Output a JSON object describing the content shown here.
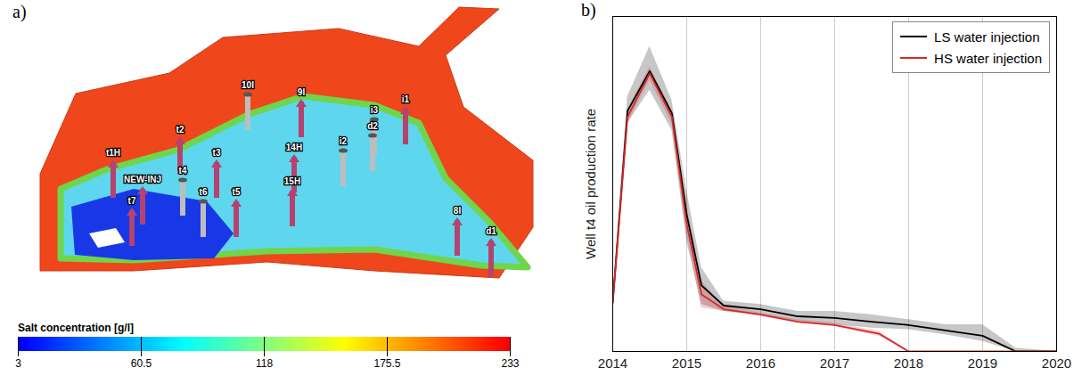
{
  "panel_a": {
    "label": "a)",
    "wells": [
      "t1H",
      "NEW-INJ",
      "t7",
      "t2",
      "t4",
      "t6",
      "t3",
      "t5",
      "10I",
      "9I",
      "14H",
      "15H",
      "i2",
      "i3",
      "d2",
      "i1",
      "8I",
      "d1"
    ],
    "colorbar": {
      "title": "Salt concentration [g/l]",
      "range": [
        3,
        233
      ],
      "ticks": [
        3,
        60.5,
        118,
        175.5,
        233
      ]
    }
  },
  "chart_data": {
    "type": "line",
    "panel_label": "b)",
    "y_label": "Well t4 oil production rate",
    "xlim": [
      2014,
      2020
    ],
    "xticks": [
      2014,
      2015,
      2016,
      2017,
      2018,
      2019,
      2020
    ],
    "ylim": [
      0,
      100
    ],
    "tick_labels": "x",
    "grid": true,
    "legend": "top-right",
    "series": [
      {
        "name": "LS water injection",
        "color": "#000000",
        "x": [
          2014,
          2014.2,
          2014.5,
          2014.8,
          2015,
          2015.2,
          2015.5,
          2016,
          2016.5,
          2017,
          2017.5,
          2018,
          2018.5,
          2019,
          2019.45,
          2020
        ],
        "values": [
          14.5,
          71.8,
          83.7,
          71.1,
          40.8,
          19.7,
          13.7,
          12.6,
          10.5,
          10,
          8.9,
          7.9,
          6.3,
          4.7,
          0,
          0
        ],
        "lower": [
          13,
          68,
          78,
          66,
          33,
          14,
          12,
          11,
          9,
          8,
          7,
          6.5,
          5,
          3,
          0,
          0
        ],
        "upper": [
          16,
          76,
          91,
          75,
          48,
          25,
          15,
          14,
          12,
          12,
          11,
          9.5,
          8,
          8,
          1,
          0
        ]
      },
      {
        "name": "HS water injection",
        "color": "#d62728",
        "x": [
          2014,
          2014.2,
          2014.5,
          2014.8,
          2015,
          2015.2,
          2015.5,
          2016,
          2016.5,
          2017,
          2017.6,
          2018,
          2020
        ],
        "values": [
          14.5,
          70,
          83,
          70,
          38,
          17,
          12.6,
          11,
          8.9,
          7.9,
          5.3,
          0,
          0
        ],
        "lower": [
          14,
          68,
          81,
          68,
          35,
          13,
          12,
          10.5,
          8.5,
          7.5,
          4.5,
          0,
          0
        ],
        "upper": [
          15,
          72,
          85,
          72,
          44,
          21,
          13.5,
          11.5,
          9.5,
          8.5,
          6,
          0,
          0
        ]
      }
    ]
  }
}
